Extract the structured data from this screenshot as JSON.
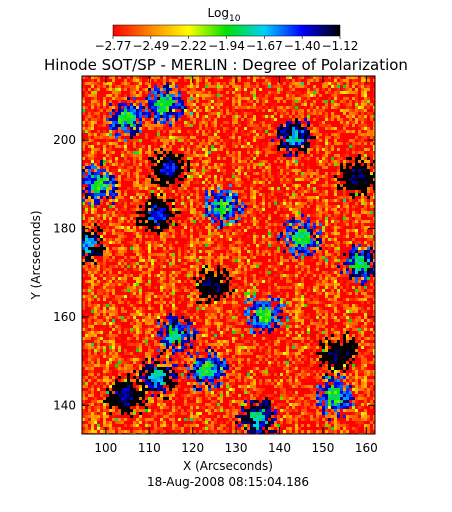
{
  "chart_data": {
    "type": "heatmap",
    "title": "Hinode SOT/SP - MERLIN : Degree of Polarization",
    "xlabel": "X (Arcseconds)",
    "ylabel": "Y (Arcseconds)",
    "date": "18-Aug-2008 08:15:04.186",
    "xlim": [
      94.5,
      162.0
    ],
    "ylim": [
      133.5,
      214.5
    ],
    "x_ticks": [
      100,
      110,
      120,
      130,
      140,
      150,
      160
    ],
    "y_ticks": [
      140,
      160,
      180,
      200
    ],
    "x_tick_labels": [
      "100",
      "110",
      "120",
      "130",
      "140",
      "150",
      "160"
    ],
    "y_tick_labels": [
      "140",
      "160",
      "180",
      "200"
    ],
    "colorbar": {
      "label_base": "Log",
      "label_sub": "10",
      "min": -2.77,
      "max": -1.12,
      "tick_labels": [
        "−2.77",
        "−2.49",
        "−2.22",
        "−1.94",
        "−1.67",
        "−1.40",
        "−1.12"
      ],
      "colormap": [
        "#ff0000",
        "#ff8800",
        "#ffff00",
        "#00e000",
        "#00d0ff",
        "#0000ff",
        "#000000"
      ]
    },
    "background_level": -2.7,
    "features": [
      {
        "x": 114.5,
        "y": 193.5,
        "level": -1.35
      },
      {
        "x": 112.0,
        "y": 183.0,
        "level": -1.4
      },
      {
        "x": 95.5,
        "y": 176.5,
        "level": -1.6
      },
      {
        "x": 124.5,
        "y": 167.0,
        "level": -1.15
      },
      {
        "x": 153.5,
        "y": 151.5,
        "level": -1.15
      },
      {
        "x": 158.0,
        "y": 191.5,
        "level": -1.2
      },
      {
        "x": 104.5,
        "y": 142.0,
        "level": -1.25
      },
      {
        "x": 112.0,
        "y": 146.5,
        "level": -1.7
      },
      {
        "x": 113.5,
        "y": 208.0,
        "level": -1.9
      },
      {
        "x": 143.5,
        "y": 200.5,
        "level": -1.7
      },
      {
        "x": 116.0,
        "y": 156.0,
        "level": -1.85
      },
      {
        "x": 135.0,
        "y": 137.0,
        "level": -1.75
      },
      {
        "x": 98.5,
        "y": 190.0,
        "level": -1.9
      },
      {
        "x": 145.0,
        "y": 178.0,
        "level": -1.9
      },
      {
        "x": 105.0,
        "y": 205.0,
        "level": -1.9
      },
      {
        "x": 127.0,
        "y": 185.0,
        "level": -1.95
      },
      {
        "x": 158.5,
        "y": 172.0,
        "level": -1.85
      },
      {
        "x": 123.0,
        "y": 148.0,
        "level": -1.9
      },
      {
        "x": 152.5,
        "y": 142.0,
        "level": -1.95
      },
      {
        "x": 136.5,
        "y": 160.5,
        "level": -1.95
      }
    ]
  }
}
